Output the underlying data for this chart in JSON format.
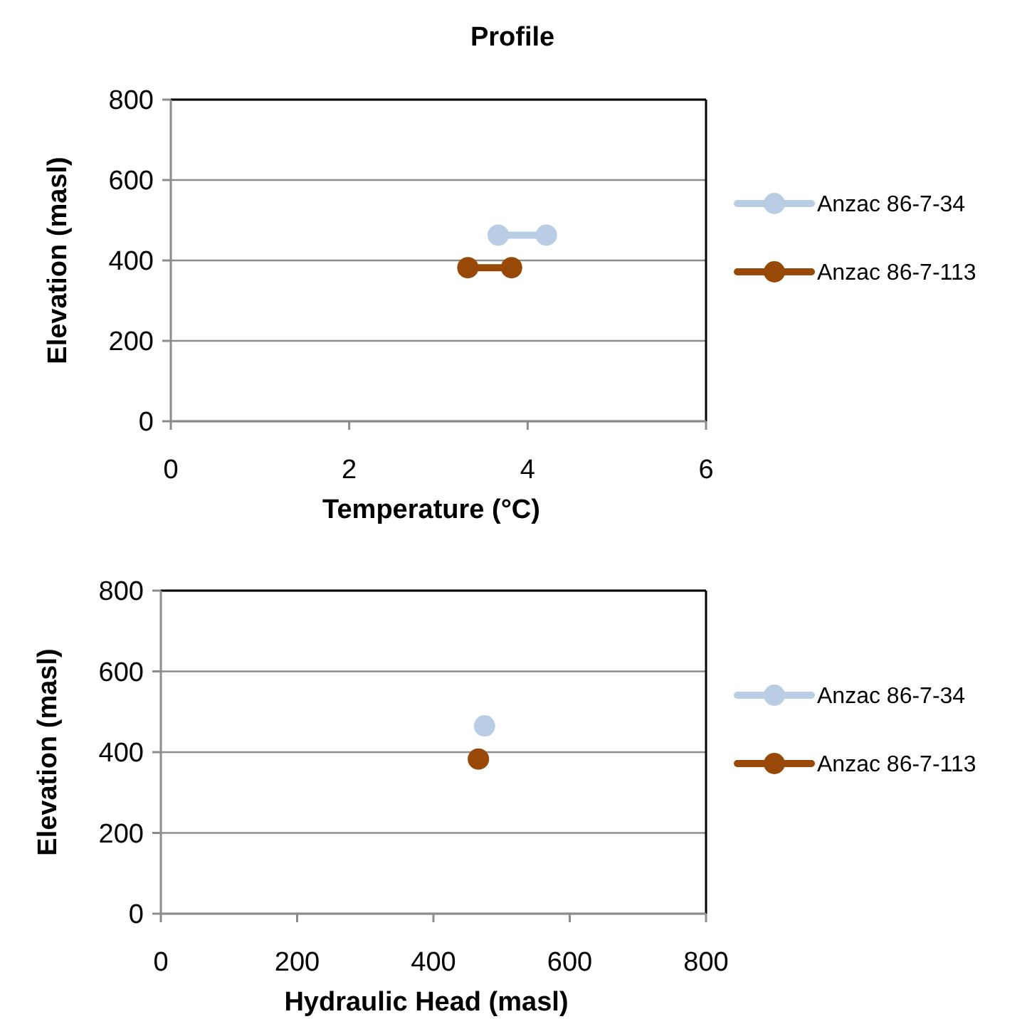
{
  "chart_data": [
    {
      "type": "line",
      "title": "Profile",
      "xlabel": "Temperature (°C)",
      "ylabel": "Elevation (masl)",
      "xlim": [
        0,
        6
      ],
      "xticks": [
        0,
        2,
        4,
        6
      ],
      "ylim": [
        0,
        800
      ],
      "yticks": [
        0,
        200,
        400,
        600,
        800
      ],
      "grid": "y",
      "legend": "right",
      "marker": "circle",
      "series": [
        {
          "name": "Anzac 86-7-34",
          "color": "#b9cde5",
          "x": [
            3.67,
            4.21
          ],
          "values": [
            463,
            463
          ]
        },
        {
          "name": "Anzac 86-7-113",
          "color": "#984807",
          "x": [
            3.33,
            3.82
          ],
          "values": [
            382,
            382
          ]
        }
      ]
    },
    {
      "type": "line",
      "xlabel": "Hydraulic Head (masl)",
      "ylabel": "Elevation (masl)",
      "xlim": [
        0,
        800
      ],
      "xticks": [
        0,
        200,
        400,
        600,
        800
      ],
      "ylim": [
        0,
        800
      ],
      "yticks": [
        0,
        200,
        400,
        600,
        800
      ],
      "grid": "y",
      "legend": "right",
      "marker": "circle",
      "series": [
        {
          "name": "Anzac 86-7-34",
          "color": "#b9cde5",
          "x": [
            475
          ],
          "values": [
            465
          ]
        },
        {
          "name": "Anzac 86-7-113",
          "color": "#984807",
          "x": [
            466
          ],
          "values": [
            383
          ]
        }
      ]
    }
  ]
}
